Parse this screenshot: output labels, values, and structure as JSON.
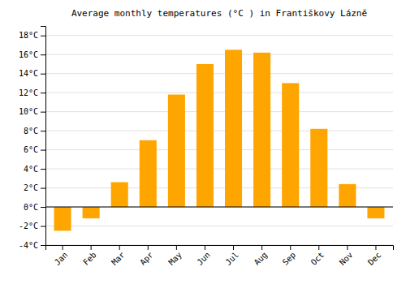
{
  "chart_data": {
    "type": "bar",
    "title": "Average monthly temperatures (°C ) in Františkovy Lázně",
    "categories": [
      "Jan",
      "Feb",
      "Mar",
      "Apr",
      "May",
      "Jun",
      "Jul",
      "Aug",
      "Sep",
      "Oct",
      "Nov",
      "Dec"
    ],
    "values": [
      -2.5,
      -1.2,
      2.6,
      7.0,
      11.8,
      15.0,
      16.5,
      16.2,
      13.0,
      8.2,
      2.4,
      -1.2
    ],
    "color": "#FFA500",
    "ylim": [
      -4,
      19
    ],
    "yticks": [
      {
        "value": -4,
        "label": "-4°C"
      },
      {
        "value": -2,
        "label": "-2°C"
      },
      {
        "value": 0,
        "label": "0°C"
      },
      {
        "value": 2,
        "label": "2°C"
      },
      {
        "value": 4,
        "label": "4°C"
      },
      {
        "value": 6,
        "label": "6°C"
      },
      {
        "value": 8,
        "label": "8°C"
      },
      {
        "value": 10,
        "label": "10°C"
      },
      {
        "value": 12,
        "label": "12°C"
      },
      {
        "value": 14,
        "label": "14°C"
      },
      {
        "value": 16,
        "label": "16°C"
      },
      {
        "value": 18,
        "label": "18°C"
      }
    ],
    "grid": true
  }
}
